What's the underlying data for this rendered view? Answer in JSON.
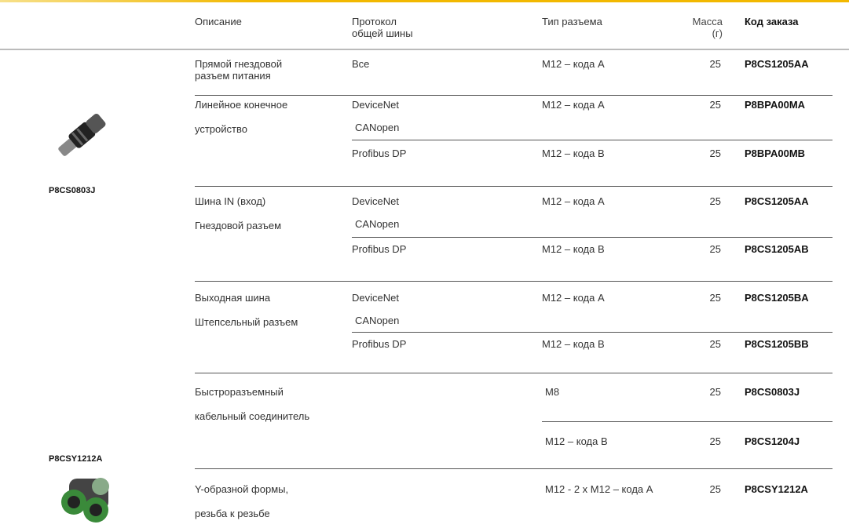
{
  "header": {
    "columns": [
      "Описание",
      "Протокол\nобщей шины",
      "Тип разъема",
      "Масса\n(г)",
      "Код заказа"
    ]
  },
  "products": [
    {
      "code": "P8CS0803J"
    },
    {
      "code": "P8CSY1212A"
    }
  ],
  "groups": [
    {
      "description": [
        "Прямой гнездовой\nразъем питания"
      ],
      "rows": [
        {
          "protocols": [
            "Все"
          ],
          "connector": "M12 – кода A",
          "mass": 25,
          "code": "P8CS1205AA"
        }
      ]
    },
    {
      "description": [
        "Линейное конечное",
        "устройство"
      ],
      "rows": [
        {
          "protocols": [
            "DeviceNet",
            "CANopen"
          ],
          "connector": "M12 – кода A",
          "mass": 25,
          "code": "P8BPA00MA"
        },
        {
          "protocols": [
            "Profibus DP"
          ],
          "connector": "M12 – кода B",
          "mass": 25,
          "code": "P8BPA00MB"
        }
      ]
    },
    {
      "description": [
        "Шина IN (вход)",
        "Гнездовой разъем"
      ],
      "rows": [
        {
          "protocols": [
            "DeviceNet",
            "CANopen"
          ],
          "connector": "M12 – кода A",
          "mass": 25,
          "code": "P8CS1205AA"
        },
        {
          "protocols": [
            "Profibus DP"
          ],
          "connector": "M12 – кода B",
          "mass": 25,
          "code": "P8CS1205AB"
        }
      ]
    },
    {
      "description": [
        "Выходная шина",
        "Штепсельный разъем"
      ],
      "rows": [
        {
          "protocols": [
            "DeviceNet",
            "CANopen"
          ],
          "connector": "M12 – кода A",
          "mass": 25,
          "code": "P8CS1205BA"
        },
        {
          "protocols": [
            "Profibus DP"
          ],
          "connector": "M12 – кода B",
          "mass": 25,
          "code": "P8CS1205BB"
        }
      ]
    },
    {
      "description": [
        "Быстроразъемный",
        "кабельный соединитель"
      ],
      "rows": [
        {
          "protocols": [],
          "connector": "M8",
          "mass": 25,
          "code": "P8CS0803J"
        },
        {
          "protocols": [],
          "connector": "M12 – кода B",
          "mass": 25,
          "code": "P8CS1204J"
        }
      ]
    },
    {
      "description": [
        "Y-образной формы,",
        "резьба к резьбе"
      ],
      "rows": [
        {
          "protocols": [],
          "connector": "M12 - 2 x M12 – кода A",
          "mass": 25,
          "code": "P8CSY1212A"
        }
      ]
    }
  ]
}
